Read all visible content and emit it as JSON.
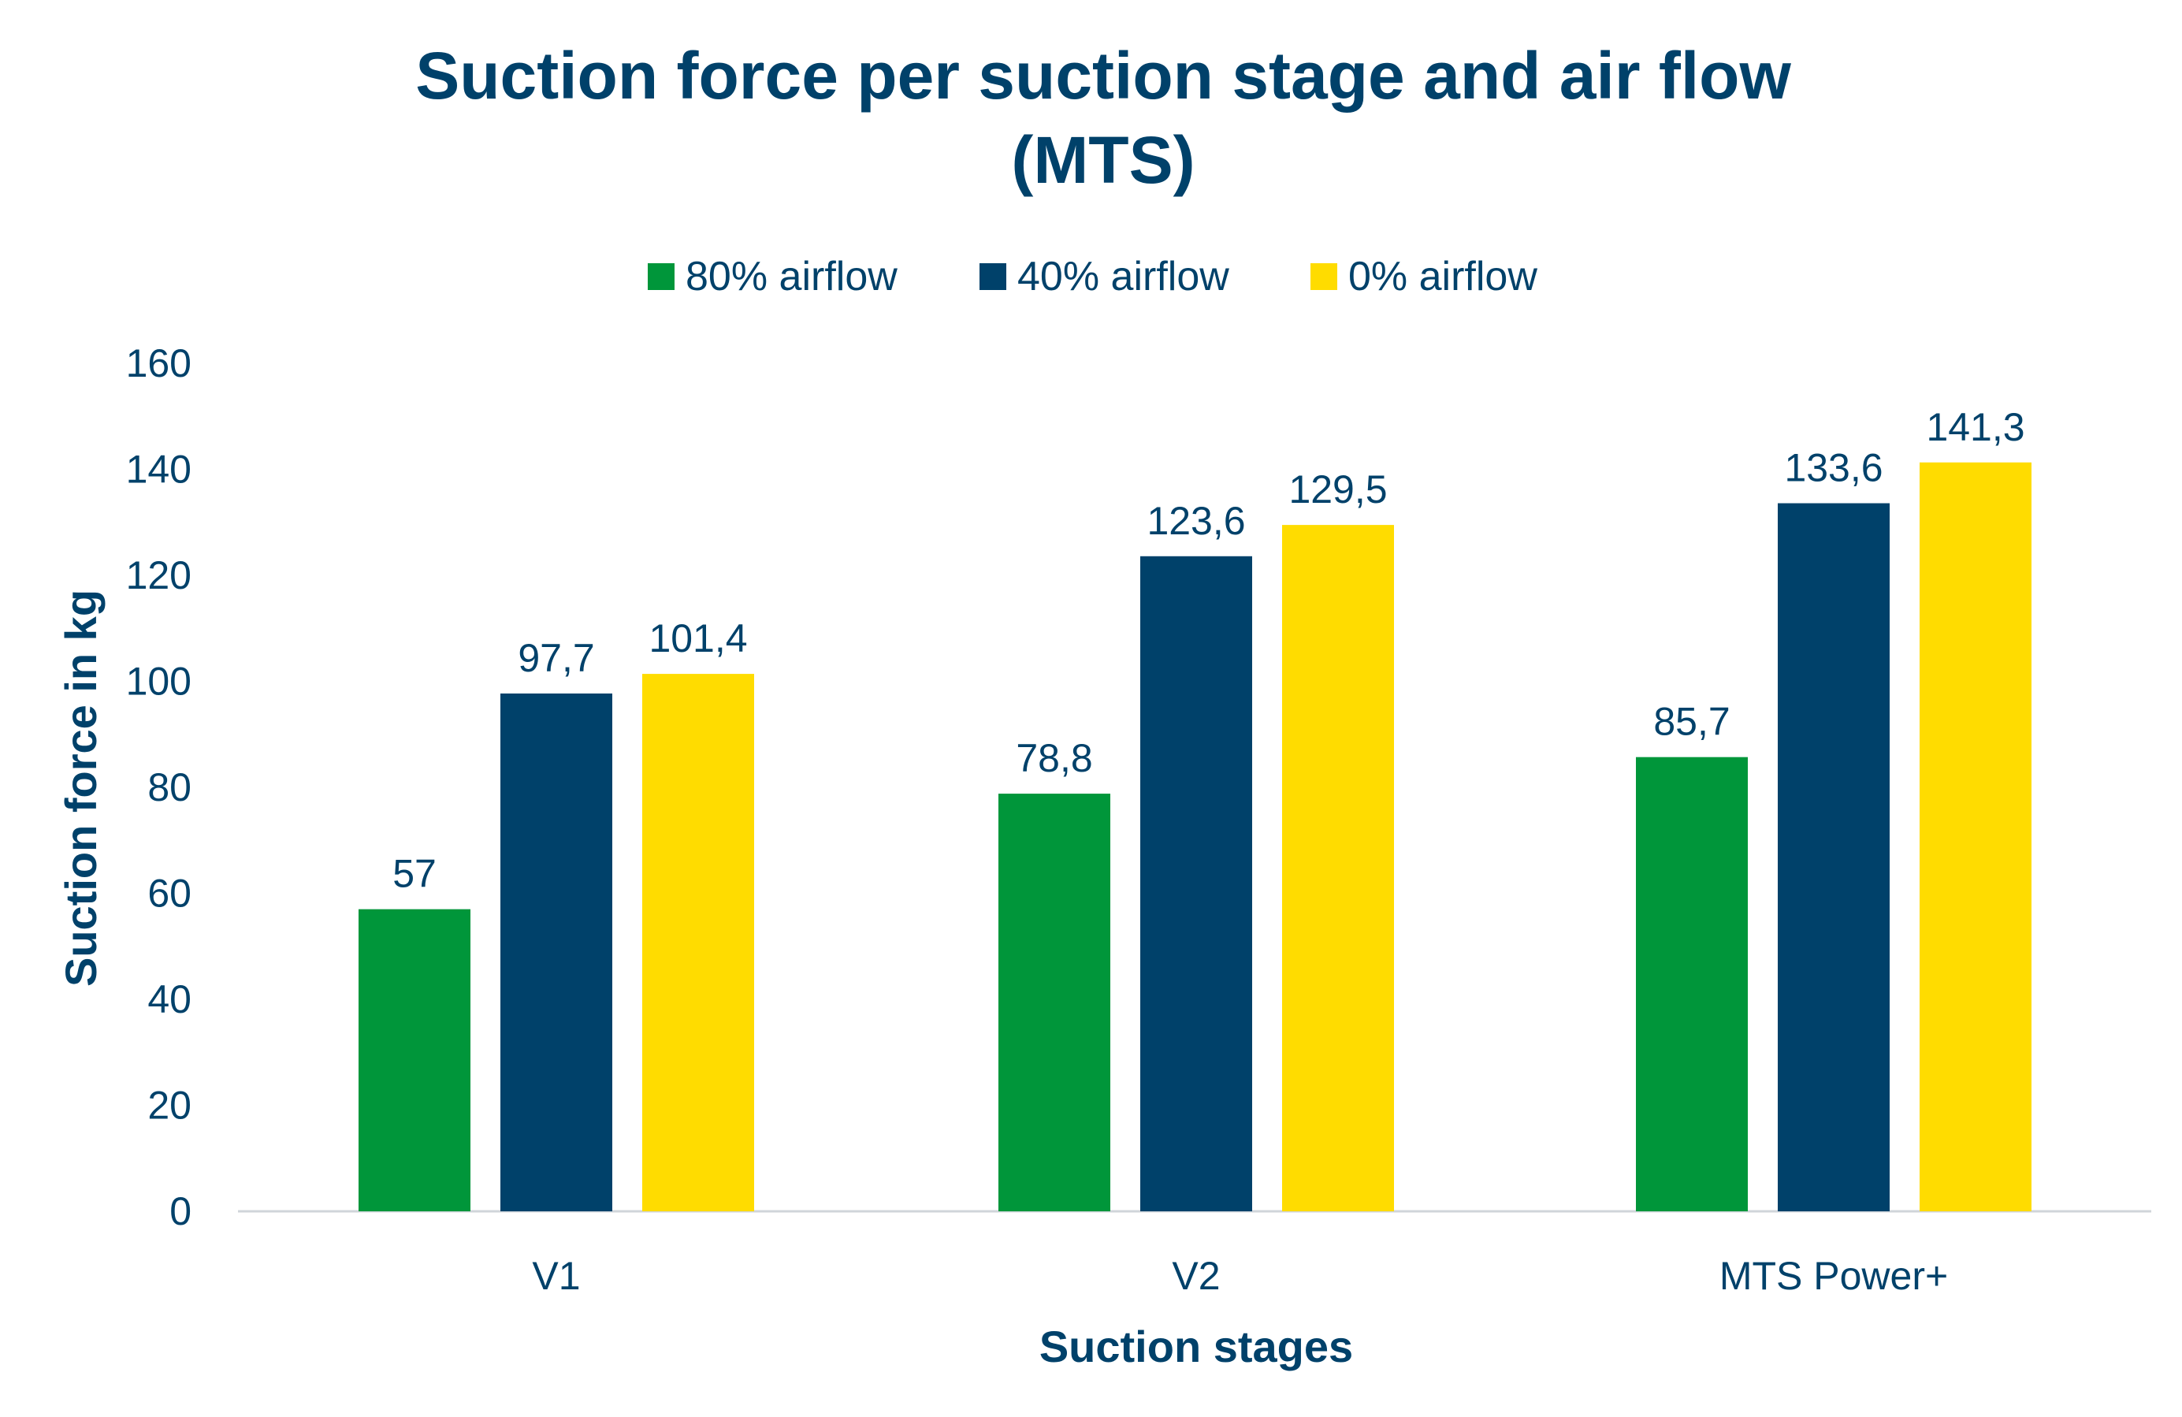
{
  "chart_data": {
    "type": "bar",
    "title": [
      "Suction force per suction stage and air flow",
      "(MTS)"
    ],
    "xlabel": "Suction stages",
    "ylabel": "Suction force in kg",
    "categories": [
      "V1",
      "V2",
      "MTS Power+"
    ],
    "series": [
      {
        "name": "80% airflow",
        "color": "#00963A",
        "values": [
          57,
          78.8,
          85.7
        ],
        "labels": [
          "57",
          "78,8",
          "85,7"
        ]
      },
      {
        "name": "40% airflow",
        "color": "#00416A",
        "values": [
          97.7,
          123.6,
          133.6
        ],
        "labels": [
          "97,7",
          "123,6",
          "133,6"
        ]
      },
      {
        "name": "0% airflow",
        "color": "#FFDC00",
        "values": [
          101.4,
          129.5,
          141.3
        ],
        "labels": [
          "101,4",
          "129,5",
          "141,3"
        ]
      }
    ],
    "ylim": [
      0,
      160
    ],
    "yticks": [
      "0",
      "20",
      "40",
      "60",
      "80",
      "100",
      "120",
      "140",
      "160"
    ],
    "grid": false,
    "legend": "top"
  }
}
